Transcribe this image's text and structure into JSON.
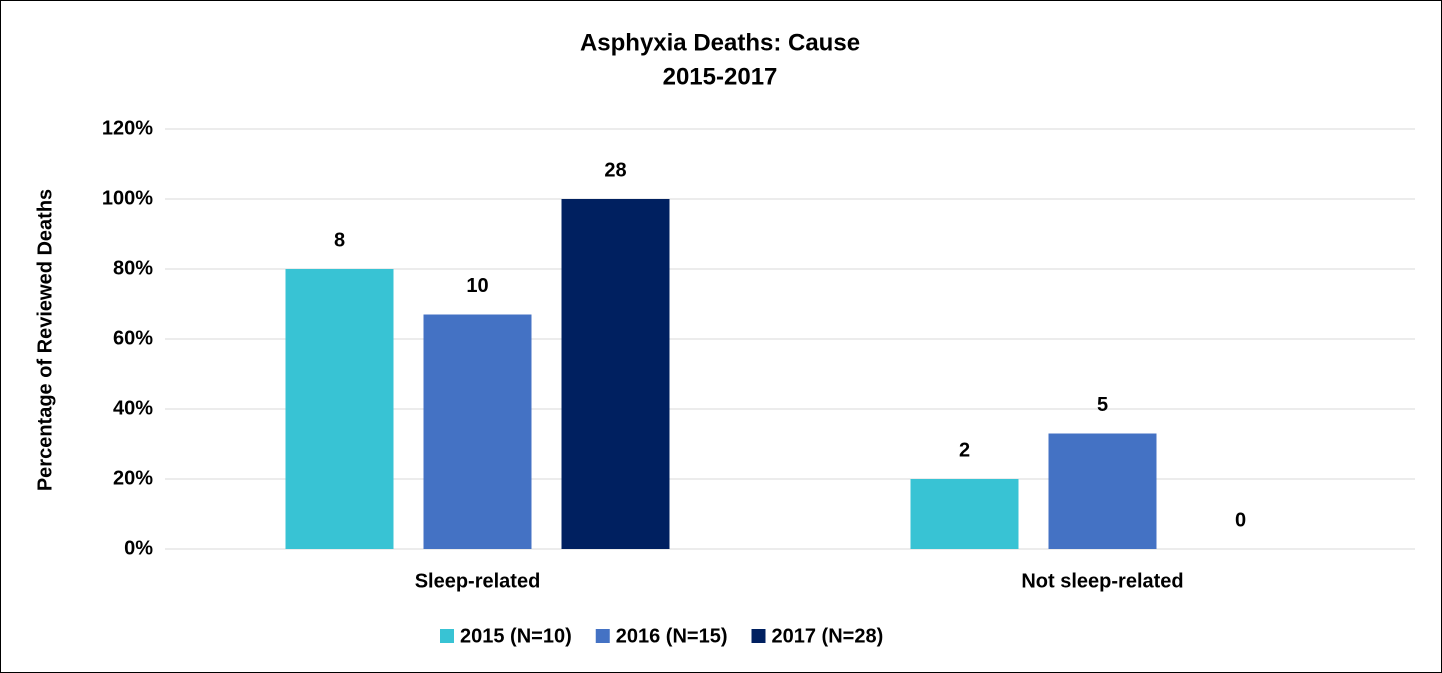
{
  "chart_data": {
    "type": "bar",
    "title": "Asphyxia Deaths: Cause",
    "subtitle": "2015-2017",
    "y_label": "Percentage of Reviewed Deaths",
    "categories": [
      "Sleep-related",
      "Not sleep-related"
    ],
    "series": [
      {
        "name": "2015 (N=10)",
        "color": "#38c3d4",
        "values": [
          80,
          20
        ],
        "counts": [
          8,
          2
        ]
      },
      {
        "name": "2016 (N=15)",
        "color": "#4472c4",
        "values": [
          67,
          33
        ],
        "counts": [
          10,
          5
        ]
      },
      {
        "name": "2017 (N=28)",
        "color": "#002060",
        "values": [
          100,
          0
        ],
        "counts": [
          28,
          0
        ]
      }
    ],
    "ylim": [
      0,
      120
    ],
    "yticks": [
      {
        "value": 0,
        "label": "0%"
      },
      {
        "value": 20,
        "label": "20%"
      },
      {
        "value": 40,
        "label": "40%"
      },
      {
        "value": 60,
        "label": "60%"
      },
      {
        "value": 80,
        "label": "80%"
      },
      {
        "value": 100,
        "label": "100%"
      },
      {
        "value": 120,
        "label": "120%"
      }
    ],
    "grid": true,
    "legend": "bottom"
  }
}
